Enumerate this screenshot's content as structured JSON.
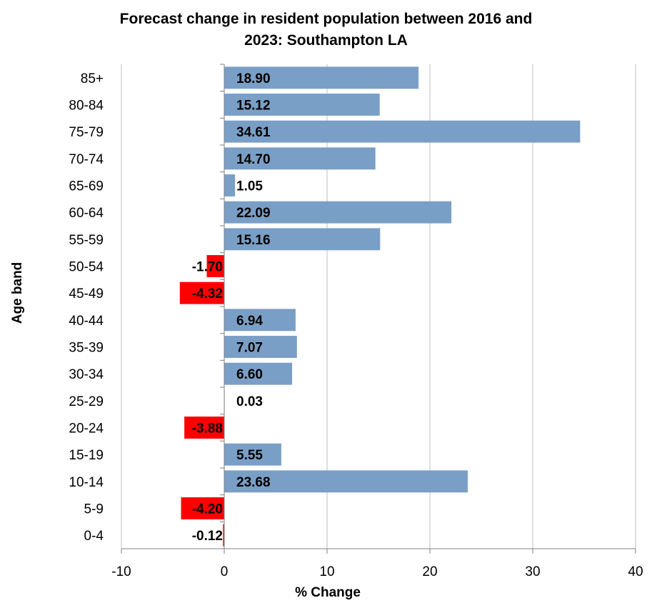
{
  "chart_data": {
    "type": "bar",
    "orientation": "horizontal",
    "title_lines": [
      "Forecast change in resident population between 2016 and",
      "2023: Southampton LA"
    ],
    "xlabel": "% Change",
    "ylabel": "Age band",
    "xlim": [
      -10,
      40
    ],
    "xticks": [
      "-10",
      "0",
      "10",
      "20",
      "30",
      "40"
    ],
    "grid": "vertical",
    "legend": "none",
    "categories": [
      "85+",
      "80-84",
      "75-79",
      "70-74",
      "65-69",
      "60-64",
      "55-59",
      "50-54",
      "45-49",
      "40-44",
      "35-39",
      "30-34",
      "25-29",
      "20-24",
      "15-19",
      "10-14",
      "5-9",
      "0-4"
    ],
    "values": [
      18.9,
      15.12,
      34.61,
      14.7,
      1.05,
      22.09,
      15.16,
      -1.7,
      -4.32,
      6.94,
      7.07,
      6.6,
      0.03,
      -3.88,
      5.55,
      23.68,
      -4.2,
      -0.12
    ],
    "value_labels": [
      "18.90",
      "15.12",
      "34.61",
      "14.70",
      "1.05",
      "22.09",
      "15.16",
      "-1.70",
      "-4.32",
      "6.94",
      "7.07",
      "6.60",
      "0.03",
      "-3.88",
      "5.55",
      "23.68",
      "-4.20",
      "-0.12"
    ],
    "colors": {
      "positive": "#7a9fc6",
      "negative": "#ff0000",
      "grid": "#bfbfbf",
      "axis": "#808080",
      "text": "#000000"
    }
  }
}
